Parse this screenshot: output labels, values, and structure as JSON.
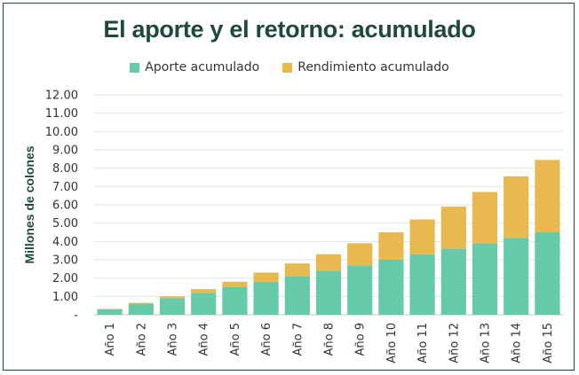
{
  "chart_data": {
    "type": "bar",
    "stacked": true,
    "title": "El aporte y el retorno: acumulado",
    "ylabel": "Millones de colones",
    "xlabel": "",
    "ylim": [
      0,
      12
    ],
    "yticks": [
      {
        "value": 0,
        "label": "-"
      },
      {
        "value": 1,
        "label": "1.00"
      },
      {
        "value": 2,
        "label": "2.00"
      },
      {
        "value": 3,
        "label": "3.00"
      },
      {
        "value": 4,
        "label": "4.00"
      },
      {
        "value": 5,
        "label": "5.00"
      },
      {
        "value": 6,
        "label": "6.00"
      },
      {
        "value": 7,
        "label": "7.00"
      },
      {
        "value": 8,
        "label": "8.00"
      },
      {
        "value": 9,
        "label": "9.00"
      },
      {
        "value": 10,
        "label": "10.00"
      },
      {
        "value": 11,
        "label": "11.00"
      },
      {
        "value": 12,
        "label": "12.00"
      }
    ],
    "categories": [
      "Año 1",
      "Año 2",
      "Año 3",
      "Año 4",
      "Año 5",
      "Año 6",
      "Año 7",
      "Año 8",
      "Año 9",
      "Año 10",
      "Año 11",
      "Año 12",
      "Año 13",
      "Año 14",
      "Año 15"
    ],
    "series": [
      {
        "name": "Aporte acumulado",
        "color": "#66c9a9",
        "values": [
          0.3,
          0.6,
          0.9,
          1.2,
          1.5,
          1.8,
          2.1,
          2.4,
          2.7,
          3.0,
          3.3,
          3.6,
          3.9,
          4.2,
          4.5
        ]
      },
      {
        "name": "Rendimiento acumulado",
        "color": "#e8b94e",
        "values": [
          0.02,
          0.05,
          0.1,
          0.2,
          0.3,
          0.5,
          0.7,
          0.9,
          1.2,
          1.5,
          1.9,
          2.3,
          2.8,
          3.35,
          3.95
        ]
      }
    ],
    "grid": true,
    "legend": "top-center"
  }
}
